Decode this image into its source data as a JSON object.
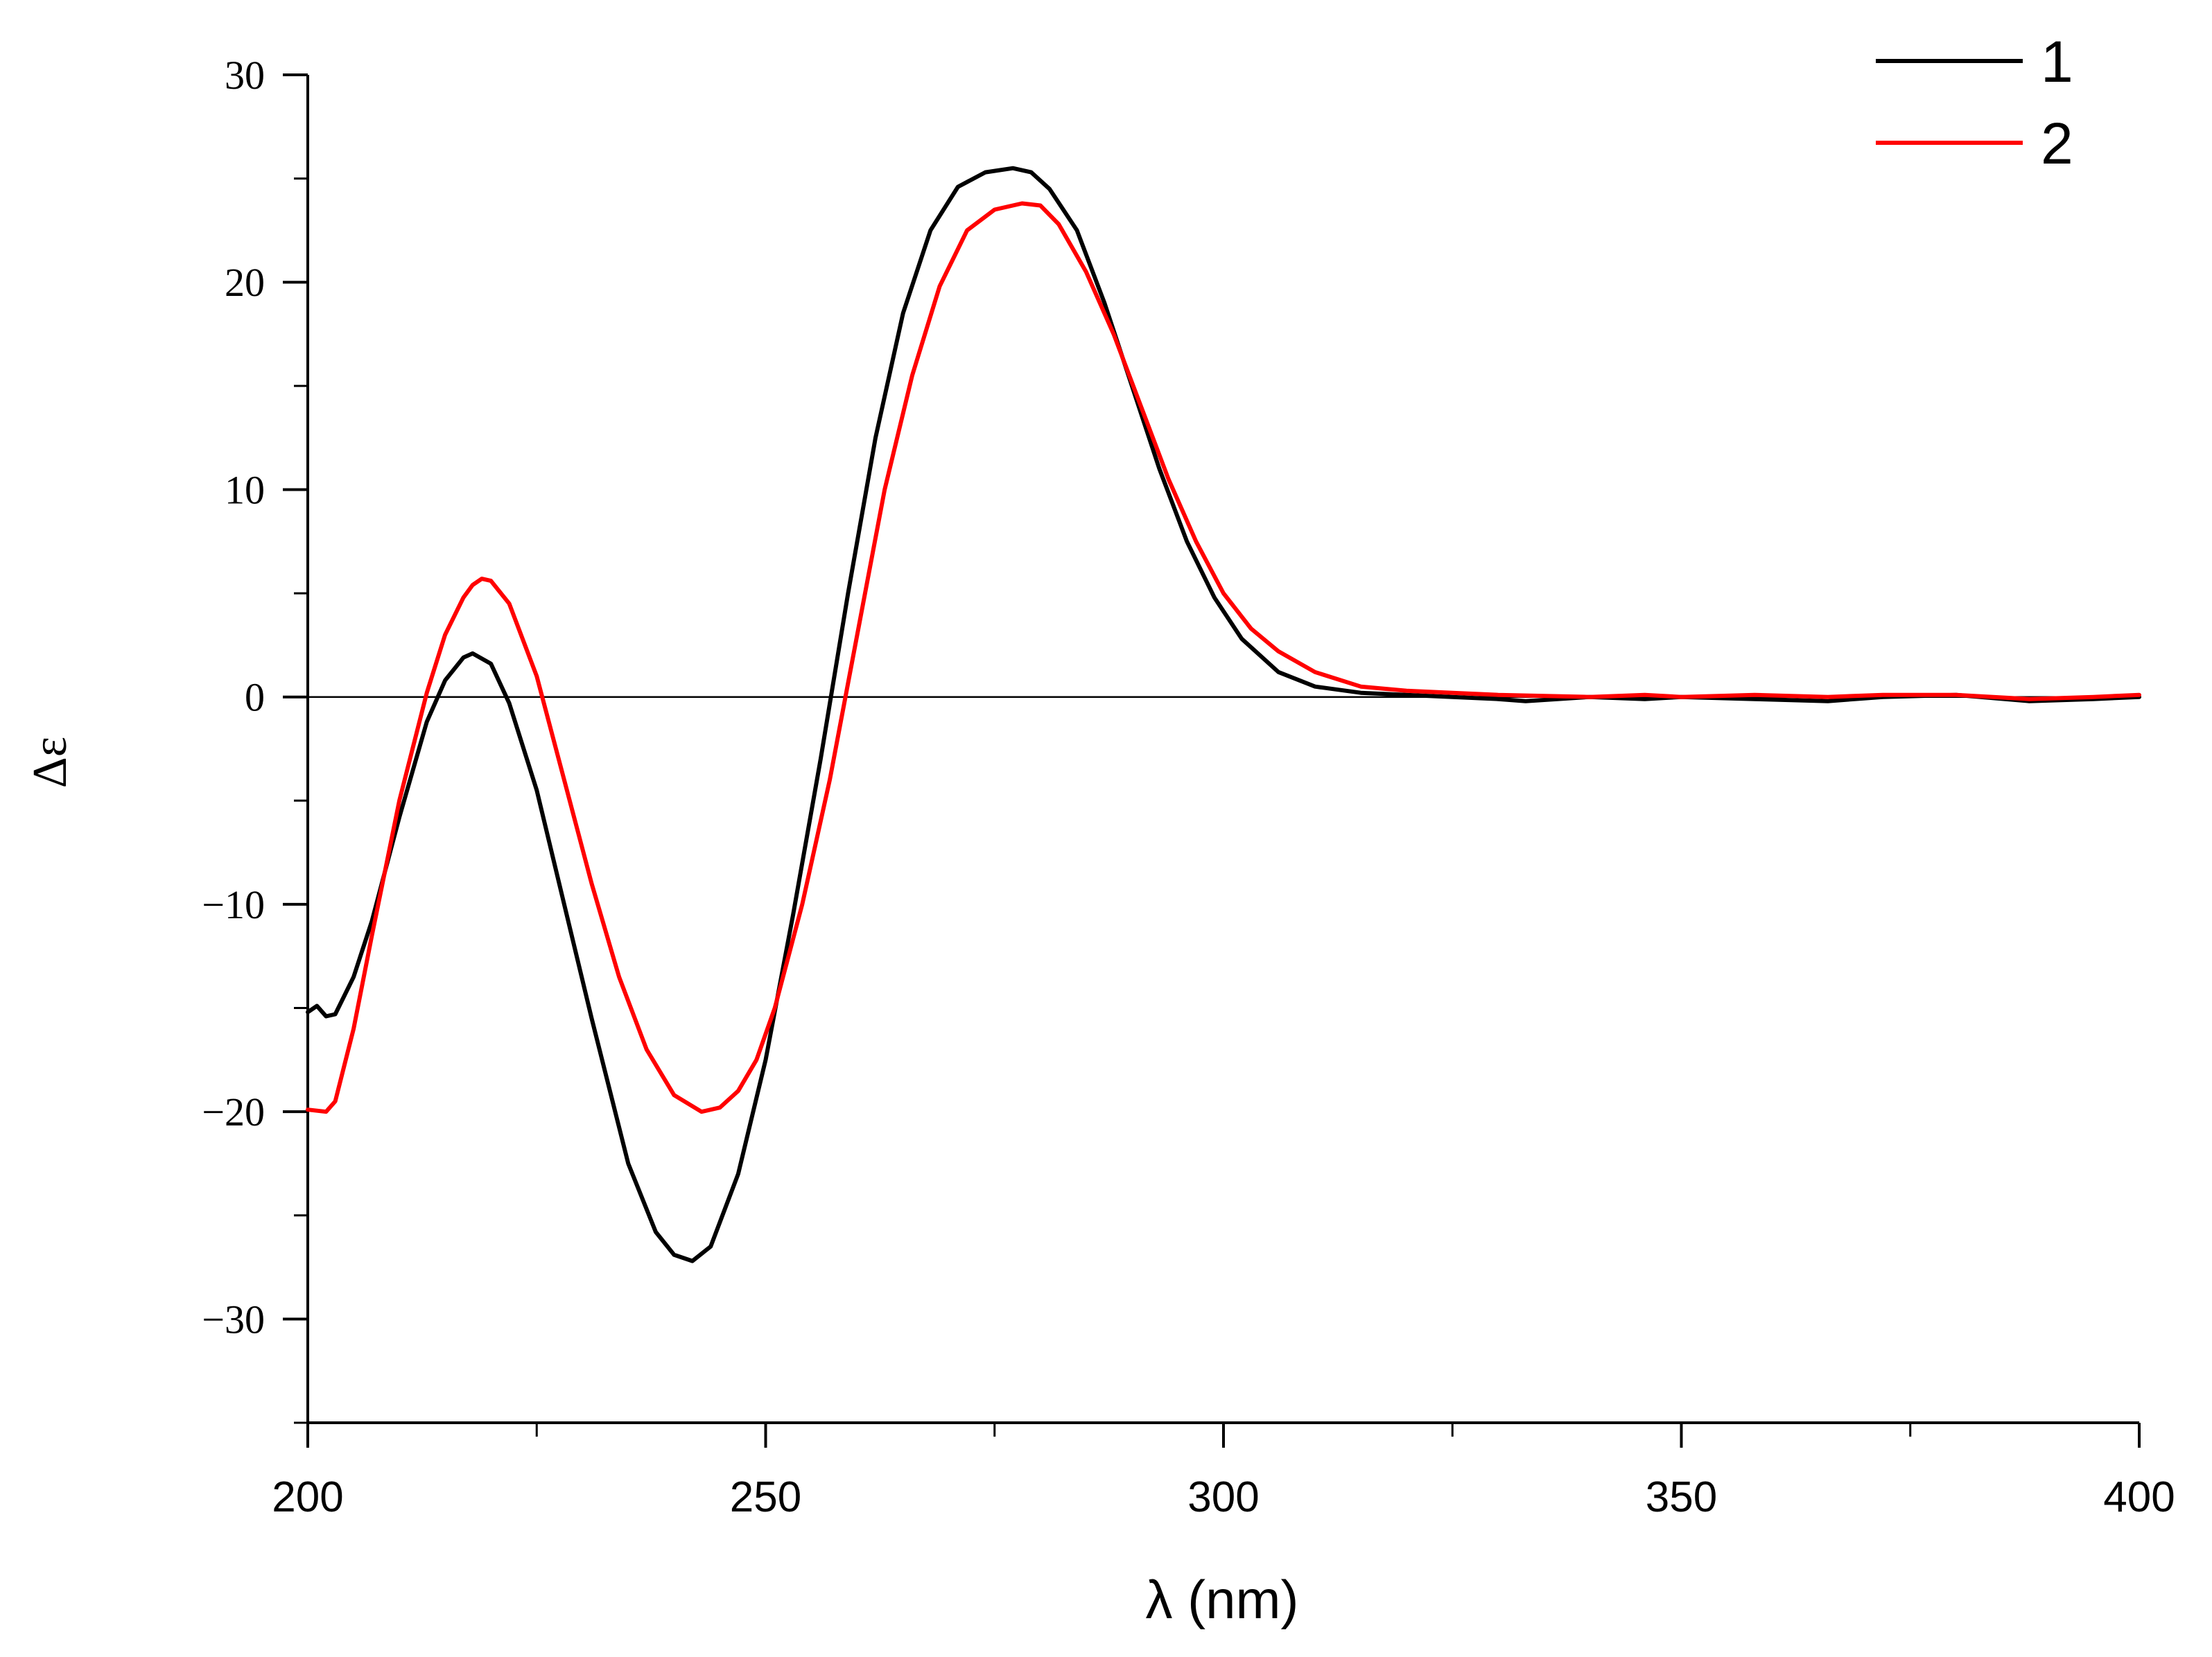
{
  "chart_data": {
    "type": "line",
    "title": "",
    "xlabel": "λ (nm)",
    "ylabel": "Δε",
    "xlim": [
      200,
      400
    ],
    "ylim": [
      -35,
      30
    ],
    "x_ticks": [
      200,
      250,
      300,
      350,
      400
    ],
    "x_tick_labels": [
      "200",
      "250",
      "300",
      "350",
      "400"
    ],
    "y_ticks": [
      30,
      20,
      10,
      0,
      -10,
      -20,
      -30
    ],
    "y_tick_labels": [
      "30",
      "20",
      "10",
      "0",
      "−10",
      "−20",
      "−30"
    ],
    "grid": false,
    "zero_line": true,
    "legend_position": "top-right",
    "series": [
      {
        "name": "1",
        "color": "#000000",
        "x": [
          200,
          201,
          202,
          203,
          205,
          207,
          210,
          213,
          215,
          217,
          218,
          220,
          222,
          225,
          228,
          231,
          235,
          238,
          240,
          242,
          244,
          247,
          250,
          253,
          256,
          259,
          262,
          265,
          268,
          271,
          274,
          277,
          279,
          281,
          284,
          287,
          290,
          293,
          296,
          299,
          302,
          306,
          310,
          315,
          320,
          325,
          330,
          333,
          340,
          346,
          350,
          358,
          366,
          372,
          380,
          388,
          395,
          400
        ],
        "y": [
          -15.2,
          -14.9,
          -15.4,
          -15.3,
          -13.5,
          -10.8,
          -5.8,
          -1.2,
          0.8,
          1.9,
          2.1,
          1.6,
          -0.3,
          -4.5,
          -10.0,
          -15.5,
          -22.5,
          -25.8,
          -26.9,
          -27.2,
          -26.5,
          -23.0,
          -17.5,
          -10.5,
          -3.0,
          5.0,
          12.5,
          18.5,
          22.5,
          24.6,
          25.3,
          25.5,
          25.3,
          24.5,
          22.5,
          19.0,
          15.0,
          11.0,
          7.5,
          4.8,
          2.8,
          1.2,
          0.5,
          0.2,
          0.1,
          0.0,
          -0.1,
          -0.2,
          0.0,
          -0.1,
          0.0,
          -0.1,
          -0.2,
          0.0,
          0.1,
          -0.2,
          -0.1,
          0.0
        ]
      },
      {
        "name": "2",
        "color": "#ff0000",
        "x": [
          200,
          202,
          203,
          205,
          207,
          210,
          213,
          215,
          217,
          218,
          219,
          220,
          222,
          225,
          228,
          231,
          234,
          237,
          240,
          243,
          245,
          247,
          249,
          251,
          254,
          257,
          260,
          263,
          266,
          269,
          272,
          275,
          278,
          280,
          282,
          285,
          288,
          291,
          294,
          297,
          300,
          303,
          306,
          310,
          315,
          320,
          325,
          330,
          340,
          346,
          350,
          358,
          366,
          372,
          380,
          388,
          395,
          400
        ],
        "y": [
          -19.9,
          -20.0,
          -19.5,
          -16.0,
          -11.5,
          -5.0,
          0.2,
          3.0,
          4.8,
          5.4,
          5.7,
          5.6,
          4.5,
          1.0,
          -4.0,
          -9.0,
          -13.5,
          -17.0,
          -19.2,
          -20.0,
          -19.8,
          -19.0,
          -17.5,
          -15.0,
          -10.0,
          -4.0,
          3.0,
          10.0,
          15.5,
          19.8,
          22.5,
          23.5,
          23.8,
          23.7,
          22.8,
          20.5,
          17.5,
          14.0,
          10.5,
          7.5,
          5.0,
          3.3,
          2.2,
          1.2,
          0.5,
          0.3,
          0.2,
          0.1,
          0.0,
          0.1,
          0.0,
          0.1,
          0.0,
          0.1,
          0.1,
          -0.1,
          0.0,
          0.1
        ]
      }
    ]
  }
}
